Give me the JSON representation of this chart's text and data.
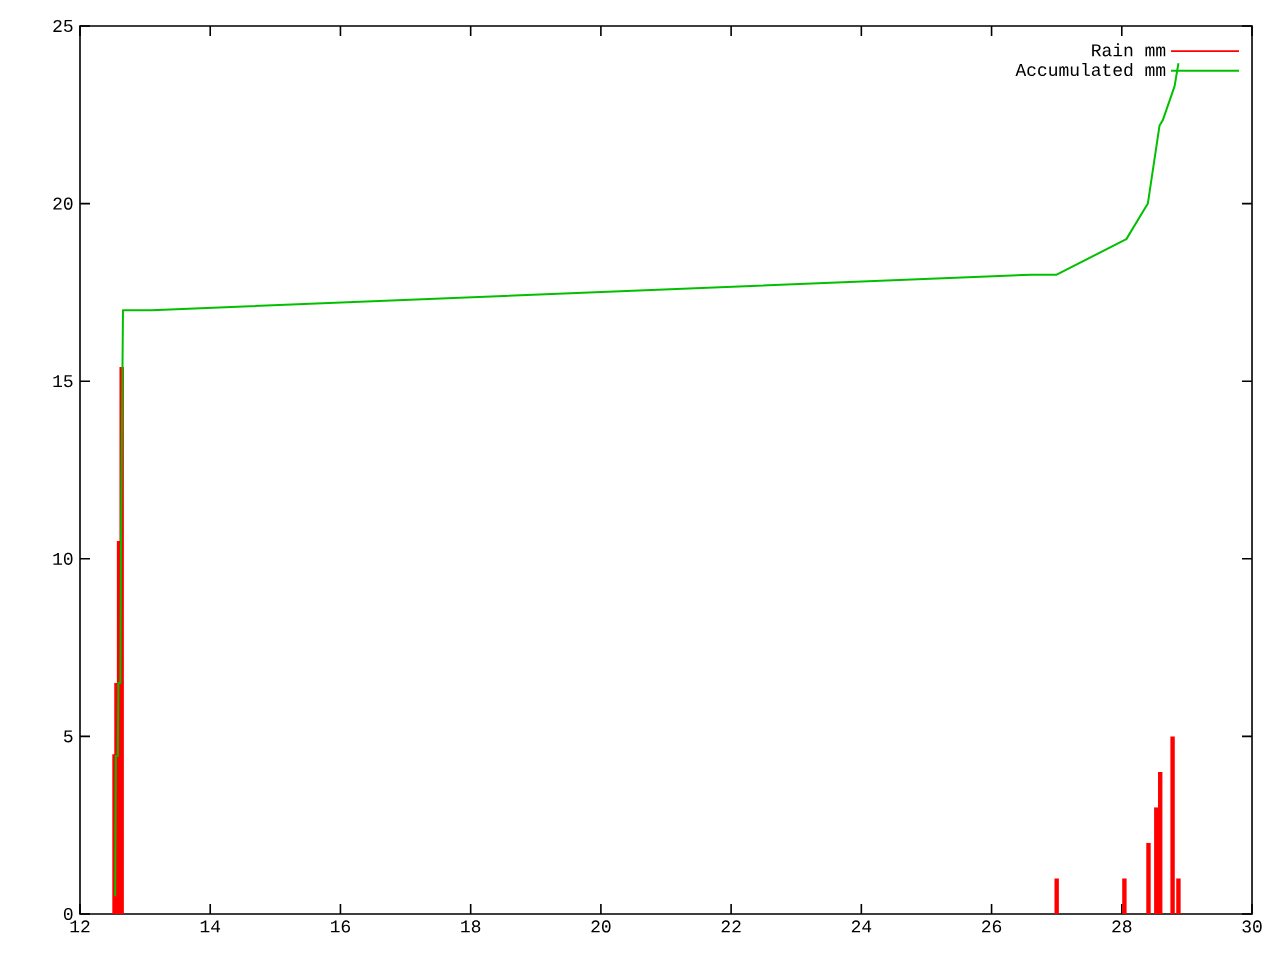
{
  "chart_data": {
    "type": "bar",
    "xlim": [
      12,
      30
    ],
    "xticks": [
      12,
      14,
      16,
      18,
      20,
      22,
      24,
      26,
      28,
      30
    ],
    "ylim": [
      0,
      25
    ],
    "yticks": [
      0,
      5,
      10,
      15,
      20,
      25
    ],
    "legend": "top right",
    "series": [
      {
        "name": "Rain mm",
        "color": "#ff0000",
        "x": [
          12.53,
          12.56,
          12.6,
          12.64,
          27.0,
          28.04,
          28.41,
          28.53,
          28.59,
          28.78,
          28.87
        ],
        "values": [
          4.5,
          6.5,
          10.5,
          15.4,
          1,
          1,
          2,
          3,
          4,
          5,
          1
        ]
      },
      {
        "name": "Accumulated mm",
        "type": "line",
        "color": "#00c000",
        "x": [
          12.54,
          12.55,
          12.58,
          12.59,
          12.62,
          12.63,
          12.66,
          13.1,
          26.6,
          27.0,
          28.07,
          28.4,
          28.58,
          28.63,
          28.81,
          28.87
        ],
        "values": [
          0.5,
          4.45,
          4.45,
          6.5,
          6.5,
          10.5,
          17.0,
          17.0,
          18.0,
          18.0,
          19.0,
          20.0,
          22.2,
          22.35,
          23.3,
          23.95
        ]
      }
    ]
  }
}
